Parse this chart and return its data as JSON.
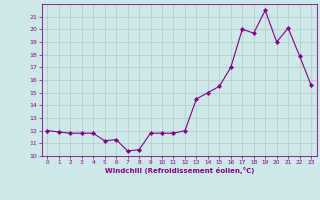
{
  "x": [
    0,
    1,
    2,
    3,
    4,
    5,
    6,
    7,
    8,
    9,
    10,
    11,
    12,
    13,
    14,
    15,
    16,
    17,
    18,
    19,
    20,
    21,
    22,
    23
  ],
  "y": [
    12.0,
    11.9,
    11.8,
    11.8,
    11.8,
    11.2,
    11.3,
    10.4,
    10.5,
    11.8,
    11.8,
    11.8,
    12.0,
    14.5,
    15.0,
    15.5,
    17.0,
    20.0,
    19.7,
    21.5,
    19.0,
    20.1,
    17.9,
    15.6
  ],
  "ylim": [
    10,
    22
  ],
  "xlim": [
    -0.5,
    23.5
  ],
  "yticks": [
    10,
    11,
    12,
    13,
    14,
    15,
    16,
    17,
    18,
    19,
    20,
    21
  ],
  "xticks": [
    0,
    1,
    2,
    3,
    4,
    5,
    6,
    7,
    8,
    9,
    10,
    11,
    12,
    13,
    14,
    15,
    16,
    17,
    18,
    19,
    20,
    21,
    22,
    23
  ],
  "xlabel": "Windchill (Refroidissement éolien,°C)",
  "line_color": "#880088",
  "marker_color": "#880088",
  "bg_color": "#cce8e8",
  "grid_color": "#b0c8c8",
  "tick_color": "#880088",
  "label_color": "#880088"
}
